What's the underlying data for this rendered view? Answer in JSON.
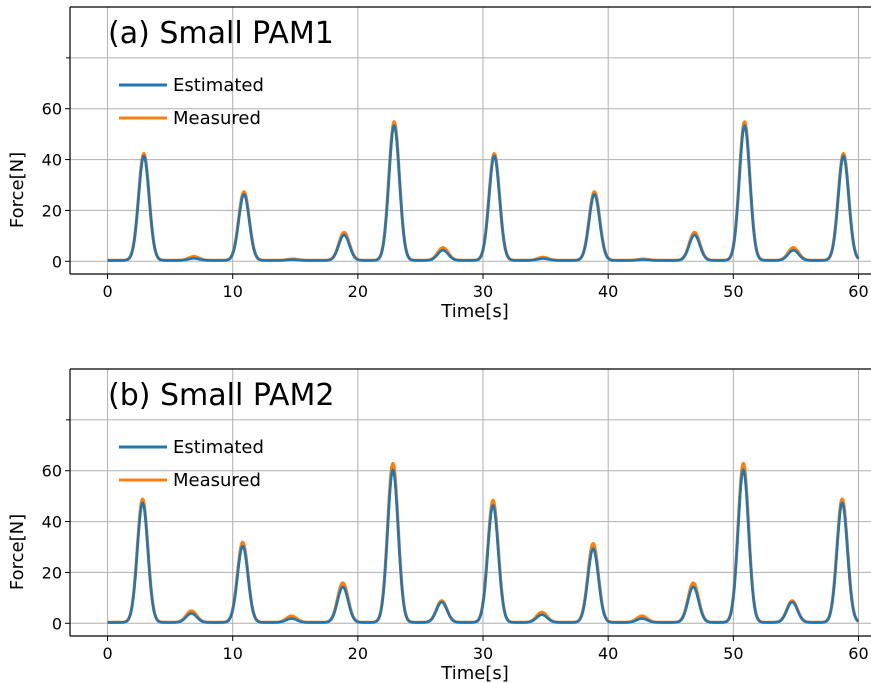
{
  "chart_data": [
    {
      "type": "line",
      "title": "(a) Small PAM1",
      "xlabel": "Time[s]",
      "ylabel": "Force[N]",
      "xlim": [
        -3,
        61
      ],
      "ylim": [
        -5,
        100
      ],
      "xticks": [
        0,
        10,
        20,
        30,
        40,
        50,
        60
      ],
      "yticks": [
        0,
        20,
        40,
        60
      ],
      "minor_yticks": [
        80
      ],
      "grid": true,
      "legend_position": "upper-left",
      "series": [
        {
          "name": "Estimated",
          "color": "#1f77b4",
          "peaks": [
            {
              "t": 2.9,
              "value": 41
            },
            {
              "t": 6.9,
              "value": 0.8
            },
            {
              "t": 10.9,
              "value": 26
            },
            {
              "t": 14.8,
              "value": 0.3
            },
            {
              "t": 18.9,
              "value": 10
            },
            {
              "t": 22.9,
              "value": 53
            },
            {
              "t": 26.8,
              "value": 4
            },
            {
              "t": 30.9,
              "value": 41
            },
            {
              "t": 34.8,
              "value": 0.7
            },
            {
              "t": 38.9,
              "value": 26
            },
            {
              "t": 42.8,
              "value": 0.3
            },
            {
              "t": 46.9,
              "value": 10
            },
            {
              "t": 50.9,
              "value": 53
            },
            {
              "t": 54.8,
              "value": 4
            },
            {
              "t": 58.8,
              "value": 41
            }
          ]
        },
        {
          "name": "Measured",
          "color": "#ff7f0e",
          "peaks": [
            {
              "t": 2.9,
              "value": 42
            },
            {
              "t": 6.9,
              "value": 1.5
            },
            {
              "t": 10.9,
              "value": 27
            },
            {
              "t": 14.8,
              "value": 0.5
            },
            {
              "t": 18.9,
              "value": 11
            },
            {
              "t": 22.9,
              "value": 54.5
            },
            {
              "t": 26.8,
              "value": 5
            },
            {
              "t": 30.9,
              "value": 42
            },
            {
              "t": 34.8,
              "value": 1.2
            },
            {
              "t": 38.9,
              "value": 27
            },
            {
              "t": 42.8,
              "value": 0.5
            },
            {
              "t": 46.9,
              "value": 11
            },
            {
              "t": 50.9,
              "value": 54.5
            },
            {
              "t": 54.8,
              "value": 5
            },
            {
              "t": 58.8,
              "value": 42
            }
          ]
        }
      ]
    },
    {
      "type": "line",
      "title": "(b) Small PAM2",
      "xlabel": "Time[s]",
      "ylabel": "Force[N]",
      "xlim": [
        -3,
        61
      ],
      "ylim": [
        -5,
        100
      ],
      "xticks": [
        0,
        10,
        20,
        30,
        40,
        50,
        60
      ],
      "yticks": [
        0,
        20,
        40,
        60
      ],
      "minor_yticks": [
        80
      ],
      "grid": true,
      "legend_position": "upper-left",
      "series": [
        {
          "name": "Estimated",
          "color": "#1f77b4",
          "peaks": [
            {
              "t": 2.8,
              "value": 47
            },
            {
              "t": 6.7,
              "value": 3.5
            },
            {
              "t": 10.8,
              "value": 30
            },
            {
              "t": 14.7,
              "value": 1.5
            },
            {
              "t": 18.8,
              "value": 14
            },
            {
              "t": 22.8,
              "value": 60
            },
            {
              "t": 26.7,
              "value": 8
            },
            {
              "t": 30.8,
              "value": 46
            },
            {
              "t": 34.7,
              "value": 3
            },
            {
              "t": 38.8,
              "value": 29
            },
            {
              "t": 42.7,
              "value": 1.5
            },
            {
              "t": 46.8,
              "value": 14
            },
            {
              "t": 50.8,
              "value": 60
            },
            {
              "t": 54.7,
              "value": 8
            },
            {
              "t": 58.7,
              "value": 47
            }
          ]
        },
        {
          "name": "Measured",
          "color": "#ff7f0e",
          "peaks": [
            {
              "t": 2.8,
              "value": 48.5
            },
            {
              "t": 6.7,
              "value": 4.5
            },
            {
              "t": 10.8,
              "value": 31.5
            },
            {
              "t": 14.7,
              "value": 2.5
            },
            {
              "t": 18.8,
              "value": 15.5
            },
            {
              "t": 22.8,
              "value": 62.5
            },
            {
              "t": 26.7,
              "value": 8.5
            },
            {
              "t": 30.8,
              "value": 48
            },
            {
              "t": 34.7,
              "value": 4
            },
            {
              "t": 38.8,
              "value": 31
            },
            {
              "t": 42.7,
              "value": 2.5
            },
            {
              "t": 46.8,
              "value": 15.5
            },
            {
              "t": 50.8,
              "value": 62.5
            },
            {
              "t": 54.7,
              "value": 8.5
            },
            {
              "t": 58.7,
              "value": 48.5
            }
          ]
        }
      ]
    }
  ]
}
